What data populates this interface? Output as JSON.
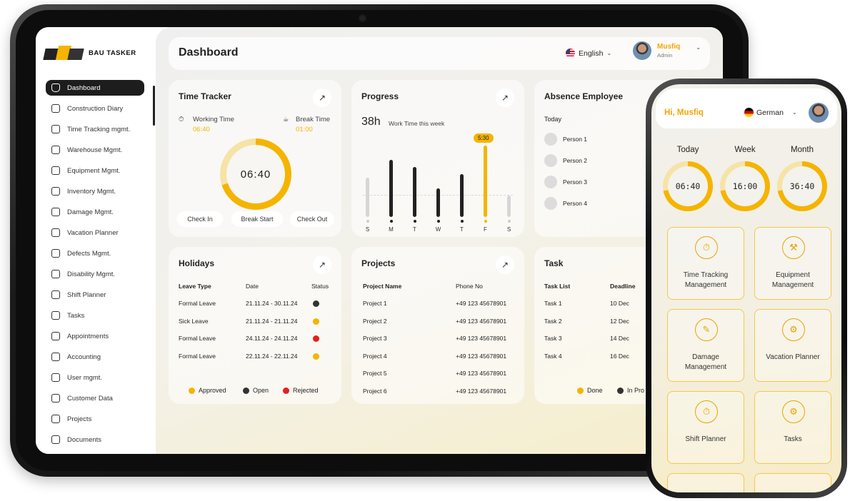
{
  "brand": {
    "name": "BAU TASKER"
  },
  "sidebar": {
    "items": [
      {
        "label": "Dashboard",
        "icon": "home-icon"
      },
      {
        "label": "Construction Diary",
        "icon": "diary-icon"
      },
      {
        "label": "Time Tracking mgmt.",
        "icon": "clock-icon"
      },
      {
        "label": "Warehouse Mgmt.",
        "icon": "warehouse-icon"
      },
      {
        "label": "Equipment Mgmt.",
        "icon": "equipment-icon"
      },
      {
        "label": "Inventory Mgmt.",
        "icon": "box-icon"
      },
      {
        "label": "Damage Mgmt.",
        "icon": "damage-icon"
      },
      {
        "label": "Vacation Planner",
        "icon": "vacation-icon"
      },
      {
        "label": "Defects Mgmt.",
        "icon": "alert-icon"
      },
      {
        "label": "Disability Mgmt.",
        "icon": "calendar-icon"
      },
      {
        "label": "Shift Planner",
        "icon": "shift-icon"
      },
      {
        "label": "Tasks",
        "icon": "tasks-icon"
      },
      {
        "label": "Appointments",
        "icon": "appointment-icon"
      },
      {
        "label": "Accounting",
        "icon": "accounting-icon"
      },
      {
        "label": "User mgmt.",
        "icon": "users-icon"
      },
      {
        "label": "Customer Data",
        "icon": "customer-icon"
      },
      {
        "label": "Projects",
        "icon": "projects-icon"
      },
      {
        "label": "Documents",
        "icon": "documents-icon"
      }
    ]
  },
  "header": {
    "title": "Dashboard",
    "language": "English",
    "user_name": "Musfiq",
    "user_role": "Admin"
  },
  "time_tracker": {
    "title": "Time Tracker",
    "working_label": "Working Time",
    "working_value": "06:40",
    "break_label": "Break Time",
    "break_value": "01:00",
    "clock": "06:40",
    "progress": 0.7,
    "buttons": [
      "Check In",
      "Break Start",
      "Check Out"
    ]
  },
  "progress": {
    "title": "Progress",
    "hours": "38h",
    "caption": "Work Time this week",
    "tooltip": "5:30",
    "days": [
      "S",
      "M",
      "T",
      "W",
      "T",
      "F",
      "S"
    ],
    "values": [
      0.55,
      0.8,
      0.7,
      0.4,
      0.6,
      1.0,
      0.3
    ],
    "highlight_index": 5
  },
  "absence": {
    "title": "Absence Employee",
    "period": "Today",
    "people": [
      "Person 1",
      "Person 2",
      "Person 3",
      "Person 4"
    ]
  },
  "holidays": {
    "title": "Holidays",
    "headers": [
      "Leave Type",
      "Date",
      "Status"
    ],
    "rows": [
      {
        "type": "Formal Leave",
        "date": "21.11.24 - 30.11.24",
        "status": "#333333"
      },
      {
        "type": "Sick Leave",
        "date": "21.11.24 - 21.11.24",
        "status": "#f5b400"
      },
      {
        "type": "Formal Leave",
        "date": "24.11.24 - 24.11.24",
        "status": "#e61e1e"
      },
      {
        "type": "Formal Leave",
        "date": "22.11.24 - 22.11.24",
        "status": "#f5b400"
      }
    ],
    "legend": [
      {
        "label": "Approved",
        "color": "#f5b400"
      },
      {
        "label": "Open",
        "color": "#333333"
      },
      {
        "label": "Rejected",
        "color": "#e61e1e"
      }
    ]
  },
  "projects": {
    "title": "Projects",
    "headers": [
      "Project Name",
      "Phone No"
    ],
    "rows": [
      {
        "name": "Project 1",
        "phone": "+49 123 45678901"
      },
      {
        "name": "Project 2",
        "phone": "+49 123 45678901"
      },
      {
        "name": "Project 3",
        "phone": "+49 123 45678901"
      },
      {
        "name": "Project 4",
        "phone": "+49 123 45678901"
      },
      {
        "name": "Project 5",
        "phone": "+49 123 45678901"
      },
      {
        "name": "Project 6",
        "phone": "+49 123 45678901"
      }
    ]
  },
  "tasks": {
    "title": "Task",
    "headers": [
      "Task List",
      "Deadline"
    ],
    "rows": [
      {
        "name": "Task 1",
        "deadline": "10 Dec"
      },
      {
        "name": "Task 2",
        "deadline": "12 Dec"
      },
      {
        "name": "Task 3",
        "deadline": "14 Dec"
      },
      {
        "name": "Task 4",
        "deadline": "16 Dec"
      }
    ],
    "legend": [
      {
        "label": "Done",
        "color": "#f5b400"
      },
      {
        "label": "In Pro",
        "color": "#333333"
      }
    ]
  },
  "phone": {
    "greeting": "Hi, Musfiq",
    "language": "German",
    "periods": [
      {
        "label": "Today",
        "value": "06:40"
      },
      {
        "label": "Week",
        "value": "16:00"
      },
      {
        "label": "Month",
        "value": "36:40"
      }
    ],
    "tiles": [
      {
        "label": "Time Tracking Management",
        "icon": "stopwatch-icon",
        "glyph": "⏱"
      },
      {
        "label": "Equipment Management",
        "icon": "equipment-icon",
        "glyph": "⚒"
      },
      {
        "label": "Damage Management",
        "icon": "damage-icon",
        "glyph": "✎"
      },
      {
        "label": "Vacation Planner",
        "icon": "gear-icon",
        "glyph": "⚙"
      },
      {
        "label": "Shift Planner",
        "icon": "stopwatch-icon",
        "glyph": "⏱"
      },
      {
        "label": "Tasks",
        "icon": "gear-icon",
        "glyph": "⚙"
      }
    ]
  }
}
